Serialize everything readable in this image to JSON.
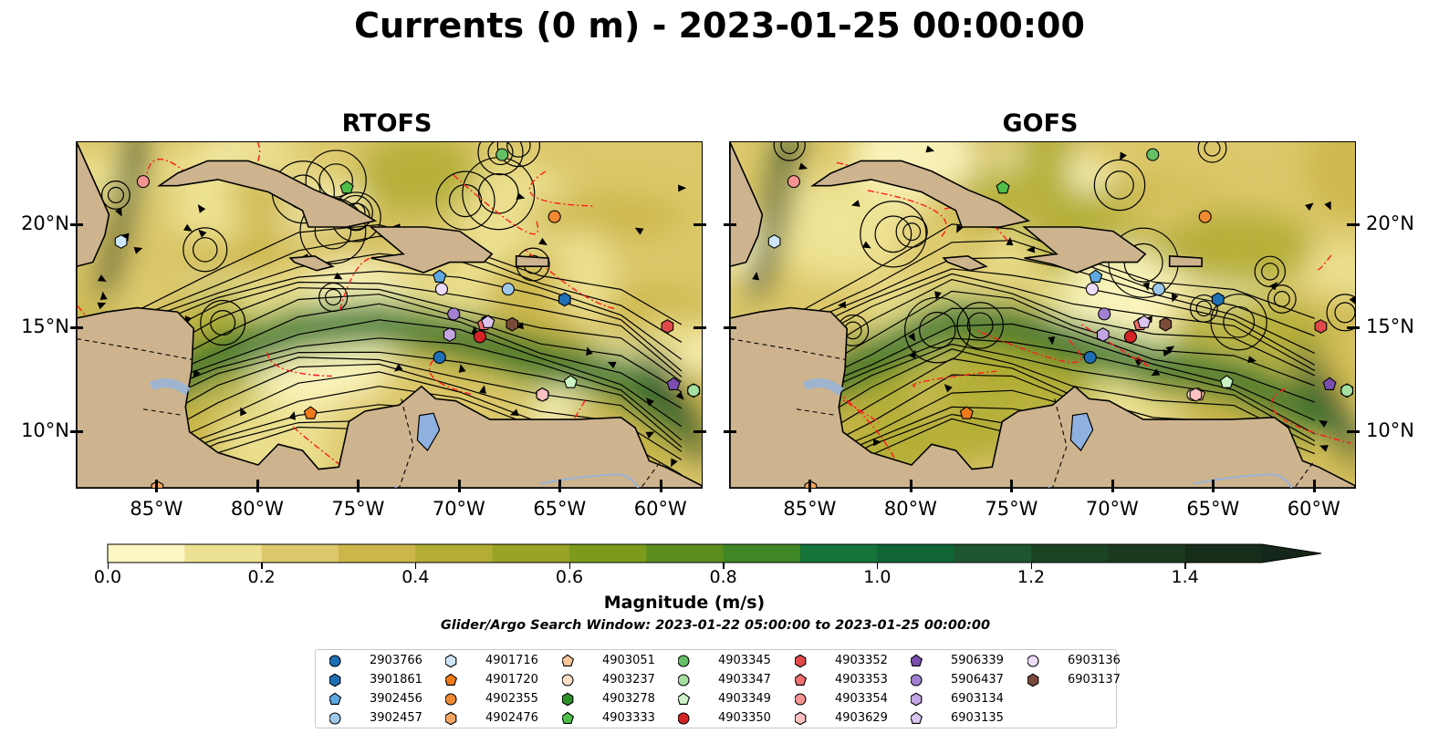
{
  "title": "Currents (0 m) - 2023-01-25 00:00:00",
  "chart_data": {
    "type": "map",
    "panels": [
      "RTOFS",
      "GOFS"
    ],
    "lon_range": [
      -89,
      -58
    ],
    "lat_range": [
      7.3,
      24
    ],
    "x_ticks": [
      "85°W",
      "80°W",
      "75°W",
      "70°W",
      "65°W",
      "60°W"
    ],
    "x_tick_values": [
      -85,
      -80,
      -75,
      -70,
      -65,
      -60
    ],
    "y_ticks": [
      "20°N",
      "15°N",
      "10°N"
    ],
    "y_tick_values": [
      20,
      15,
      10
    ],
    "colorbar": {
      "label": "Magnitude (m/s)",
      "range": [
        0,
        1.6
      ],
      "tick_labels": [
        "0.0",
        "0.2",
        "0.4",
        "0.6",
        "0.8",
        "1.0",
        "1.2",
        "1.4"
      ],
      "tick_values": [
        0,
        0.2,
        0.4,
        0.6,
        0.8,
        1.0,
        1.2,
        1.4
      ],
      "extend": "max",
      "colors": [
        "#fdf7c3",
        "#ede293",
        "#dcc86a",
        "#ccb64a",
        "#b3ad35",
        "#97a425",
        "#7d9b1b",
        "#5c8e1e",
        "#3f8624",
        "#16733a",
        "#0f6534",
        "#1f5530",
        "#1a4424",
        "#1b3a20",
        "#162d19",
        "#14271a"
      ]
    },
    "search_window": "Glider/Argo Search Window: 2023-01-22 05:00:00 to 2023-01-25 00:00:00",
    "platforms": [
      {
        "id": "2903766",
        "marker": "circle",
        "color": "#1f6fb4",
        "lon": -71.0,
        "lat": 13.6
      },
      {
        "id": "3901861",
        "marker": "hexagon",
        "color": "#1f6fb4",
        "lon": -64.8,
        "lat": 16.4
      },
      {
        "id": "3902456",
        "marker": "pentagon",
        "color": "#5ea8e0",
        "lon": -71.0,
        "lat": 17.5
      },
      {
        "id": "3902457",
        "marker": "circle",
        "color": "#9ec8ea",
        "lon": -67.6,
        "lat": 16.9
      },
      {
        "id": "4901716",
        "marker": "hexagon",
        "color": "#cde6f7",
        "lon": -86.8,
        "lat": 19.2
      },
      {
        "id": "4901720",
        "marker": "pentagon",
        "color": "#ef7a1a",
        "lon": -77.4,
        "lat": 10.9
      },
      {
        "id": "4902355",
        "marker": "circle",
        "color": "#f08a33",
        "lon": -65.3,
        "lat": 20.4
      },
      {
        "id": "4902476",
        "marker": "hexagon",
        "color": "#f4a55f",
        "lon": -85.0,
        "lat": 7.3
      },
      {
        "id": "4903051",
        "marker": "pentagon",
        "color": "#f7c79a",
        "lon": -65.9,
        "lat": 11.8
      },
      {
        "id": "4903237",
        "marker": "circle",
        "color": "#fde0c6",
        "lon": -65.9,
        "lat": 11.8
      },
      {
        "id": "4903278",
        "marker": "hexagon",
        "color": "#2b8f2b",
        "lon": -58.4,
        "lat": 12.0
      },
      {
        "id": "4903333",
        "marker": "pentagon",
        "color": "#4fbf4a",
        "lon": -75.6,
        "lat": 21.8
      },
      {
        "id": "4903345",
        "marker": "circle",
        "color": "#63c066",
        "lon": -67.9,
        "lat": 23.4
      },
      {
        "id": "4903347",
        "marker": "circle",
        "color": "#a4dea0",
        "lon": -58.4,
        "lat": 12.0
      },
      {
        "id": "4903349",
        "marker": "pentagon",
        "color": "#cbf3c6",
        "lon": -64.5,
        "lat": 12.4
      },
      {
        "id": "4903350",
        "marker": "circle",
        "color": "#d62326",
        "lon": -69.0,
        "lat": 14.6
      },
      {
        "id": "4903352",
        "marker": "hexagon",
        "color": "#e04a4a",
        "lon": -59.7,
        "lat": 15.1
      },
      {
        "id": "4903353",
        "marker": "pentagon",
        "color": "#f07070",
        "lon": -68.8,
        "lat": 15.2
      },
      {
        "id": "4903354",
        "marker": "circle",
        "color": "#f59393",
        "lon": -85.7,
        "lat": 22.1
      },
      {
        "id": "4903629",
        "marker": "hexagon",
        "color": "#fbc0c0",
        "lon": -65.9,
        "lat": 11.8
      },
      {
        "id": "5906339",
        "marker": "pentagon",
        "color": "#7b4fb2",
        "lon": -59.4,
        "lat": 12.3
      },
      {
        "id": "5906437",
        "marker": "circle",
        "color": "#a27fd1",
        "lon": -70.3,
        "lat": 15.7
      },
      {
        "id": "6903134",
        "marker": "hexagon",
        "color": "#c3a5e3",
        "lon": -70.5,
        "lat": 14.7
      },
      {
        "id": "6903135",
        "marker": "pentagon",
        "color": "#dbc4f0",
        "lon": -68.6,
        "lat": 15.3
      },
      {
        "id": "6903136",
        "marker": "circle",
        "color": "#ecdcf9",
        "lon": -70.9,
        "lat": 16.9
      },
      {
        "id": "6903137",
        "marker": "hexagon",
        "color": "#7a4b3a",
        "lon": -67.4,
        "lat": 15.2
      }
    ]
  }
}
